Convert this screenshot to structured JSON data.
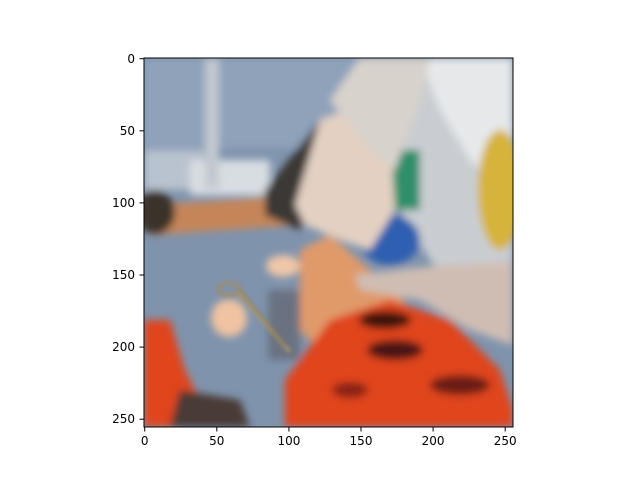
{
  "figure": {
    "x_ticks": [
      "0",
      "50",
      "100",
      "150",
      "200",
      "250"
    ],
    "y_ticks": [
      "0",
      "50",
      "100",
      "150",
      "200",
      "250"
    ],
    "x_range": [
      0,
      256
    ],
    "y_range": [
      0,
      256
    ],
    "y_axis_inverted": true,
    "image_description_free": true
  },
  "colors": {
    "background": "#ffffff",
    "axes_frame": "#000000",
    "table_blue": "#6f86a3",
    "skin": "#e2a27a",
    "orange_fabric": "#e0431c",
    "wall_light": "#d9dde3",
    "glove": "#e9d6c8"
  }
}
